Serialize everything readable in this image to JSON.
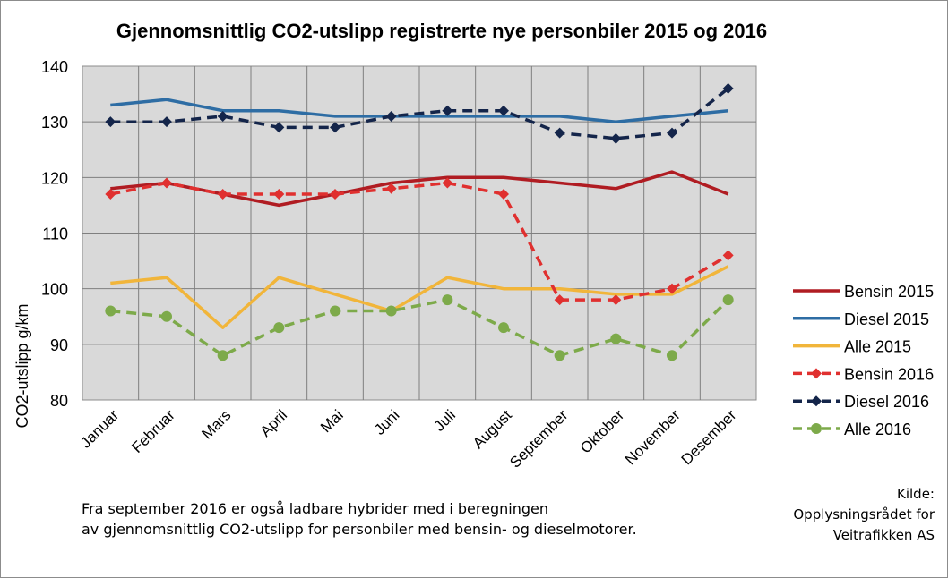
{
  "chart_data": {
    "type": "line",
    "title": "Gjennomsnittlig CO2-utslipp registrerte nye personbiler 2015 og 2016",
    "xlabel": "",
    "ylabel": "CO2-utslipp g/km",
    "ylim": [
      80,
      140
    ],
    "yticks": [
      80,
      90,
      100,
      110,
      120,
      130,
      140
    ],
    "grid": true,
    "legend_position": "right",
    "categories": [
      "Januar",
      "Februar",
      "Mars",
      "April",
      "Mai",
      "Juni",
      "Juli",
      "August",
      "September",
      "Oktober",
      "November",
      "Desember"
    ],
    "series": [
      {
        "name": "Bensin 2015",
        "color": "#b01c22",
        "style": "solid",
        "marker": "none",
        "values": [
          118,
          119,
          117,
          115,
          117,
          119,
          120,
          120,
          119,
          118,
          121,
          117
        ]
      },
      {
        "name": "Diesel 2015",
        "color": "#2e6da4",
        "style": "solid",
        "marker": "none",
        "values": [
          133,
          134,
          132,
          132,
          131,
          131,
          131,
          131,
          131,
          130,
          131,
          132
        ]
      },
      {
        "name": "Alle 2015",
        "color": "#f1b53a",
        "style": "solid",
        "marker": "none",
        "values": [
          101,
          102,
          93,
          102,
          99,
          96,
          102,
          100,
          100,
          99,
          99,
          104
        ]
      },
      {
        "name": "Bensin 2016",
        "color": "#e0302f",
        "style": "dashed",
        "marker": "diamond",
        "values": [
          117,
          119,
          117,
          117,
          117,
          118,
          119,
          117,
          98,
          98,
          100,
          106
        ]
      },
      {
        "name": "Diesel 2016",
        "color": "#14254a",
        "style": "dashed",
        "marker": "diamond",
        "values": [
          130,
          130,
          131,
          129,
          129,
          131,
          132,
          132,
          128,
          127,
          128,
          136
        ]
      },
      {
        "name": "Alle 2016",
        "color": "#7daa4a",
        "style": "dashed",
        "marker": "circle",
        "values": [
          96,
          95,
          88,
          93,
          96,
          96,
          98,
          93,
          88,
          91,
          88,
          98
        ]
      }
    ]
  },
  "note": {
    "line1": "Fra september 2016 er også ladbare hybrider med i beregningen",
    "line2": "av gjennomsnittlig CO2-utslipp for personbiler med bensin- og dieselmotorer."
  },
  "source": {
    "line1": "Kilde:",
    "line2": "Opplysningsrådet for",
    "line3": "Veitrafikken AS"
  }
}
